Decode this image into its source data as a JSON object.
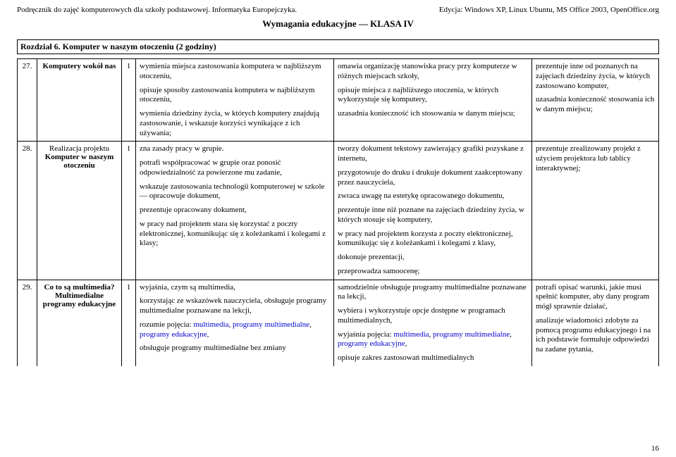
{
  "header": {
    "left": "Podręcznik do zajęć komputerowych dla szkoły podstawowej. Informatyka Europejczyka.",
    "right": "Edycja: Windows XP, Linux Ubuntu, MS Office 2003, OpenOffice.org"
  },
  "title": "Wymagania edukacyjne — KLASA IV",
  "section": "Rozdział 6. Komputer w naszym otoczeniu (2 godziny)",
  "rows": [
    {
      "num": "27.",
      "topic": "Komputery wokół nas",
      "topic_bold": true,
      "hours": "1",
      "c1": [
        "wymienia miejsca zastosowania komputera w najbliższym otoczeniu,",
        "opisuje sposoby zastosowania komputera w najbliższym otoczeniu,",
        "wymienia dziedziny życia, w których komputery znajdują zastosowanie, i wskazuje korzyści wynikające z ich używania;"
      ],
      "c2": [
        "omawia organizację stanowiska pracy przy komputerze w różnych miejscach szkoły,",
        "opisuje miejsca z najbliższego otoczenia, w których wykorzystuje się komputery,",
        "uzasadnia konieczność ich stosowania w danym miejscu;"
      ],
      "c3": [
        "prezentuje inne od poznanych na zajęciach dziedziny życia, w których zastosowano komputer,",
        "uzasadnia konieczność stosowania ich w danym miejscu;"
      ]
    },
    {
      "num": "28.",
      "topic_pre": "Realizacja projektu",
      "topic": "Komputer w naszym otoczeniu",
      "topic_bold": true,
      "hours": "1",
      "c1": [
        "zna zasady pracy w grupie.",
        "potrafi współpracować w grupie oraz ponosić odpowiedzialność za powierzone mu zadanie,",
        "wskazuje zastosowania technologii komputerowej w szkole — opracowuje dokument,",
        "prezentuje opracowany dokument,",
        "w pracy nad projektem stara się korzystać z poczty elektronicznej, komunikując się z koleżankami i kolegami z klasy;"
      ],
      "c2": [
        "tworzy dokument tekstowy zawierający grafiki pozyskane z internetu,",
        "przygotowuje do druku i drukuje dokument zaakceptowany przez nauczyciela,",
        "zwraca uwagę na estetykę opracowanego dokumentu,",
        "prezentuje inne niż poznane na zajęciach dziedziny życia, w których stosuje się komputery,",
        "w pracy nad projektem korzysta z poczty elektronicznej, komunikując się z koleżankami i kolegami z klasy,",
        "dokonuje prezentacji,",
        "przeprowadza samoocenę;"
      ],
      "c3": [
        "prezentuje zrealizowany projekt z użyciem projektora lub tablicy interaktywnej;"
      ]
    },
    {
      "num": "29.",
      "topic": "Co to są multimedia? Multimedialne programy edukacyjne",
      "topic_bold": true,
      "hours": "1",
      "c1": [
        "wyjaśnia, czym są multimedia,",
        "korzystając ze wskazówek nauczyciela, obsługuje programy multimedialne poznawane na lekcji,",
        {
          "pre": "rozumie pojęcia: ",
          "links": [
            "multimedia",
            ", ",
            "programy multimedialne",
            ", ",
            "programy edukacyjne"
          ],
          "post": ","
        },
        "obsługuje programy multimedialne bez zmiany"
      ],
      "c2": [
        "samodzielnie obsługuje programy multimedialne poznawane na lekcji,",
        "wybiera i wykorzystuje opcje dostępne w programach multimedialnych,",
        {
          "pre": "wyjaśnia pojęcia: ",
          "links": [
            "multimedia",
            ", ",
            "programy multimedialne",
            ", ",
            "programy edukacyjne"
          ],
          "post": ","
        },
        "opisuje zakres zastosowań multimedialnych"
      ],
      "c3": [
        "potrafi opisać warunki, jakie musi spełnić komputer, aby dany program mógł sprawnie działać,",
        "analizuje wiadomości zdobyte za pomocą programu edukacyjnego i na ich podstawie formułuje odpowiedzi na zadane pytania,"
      ],
      "open_bottom": true
    }
  ],
  "page_number": "16"
}
